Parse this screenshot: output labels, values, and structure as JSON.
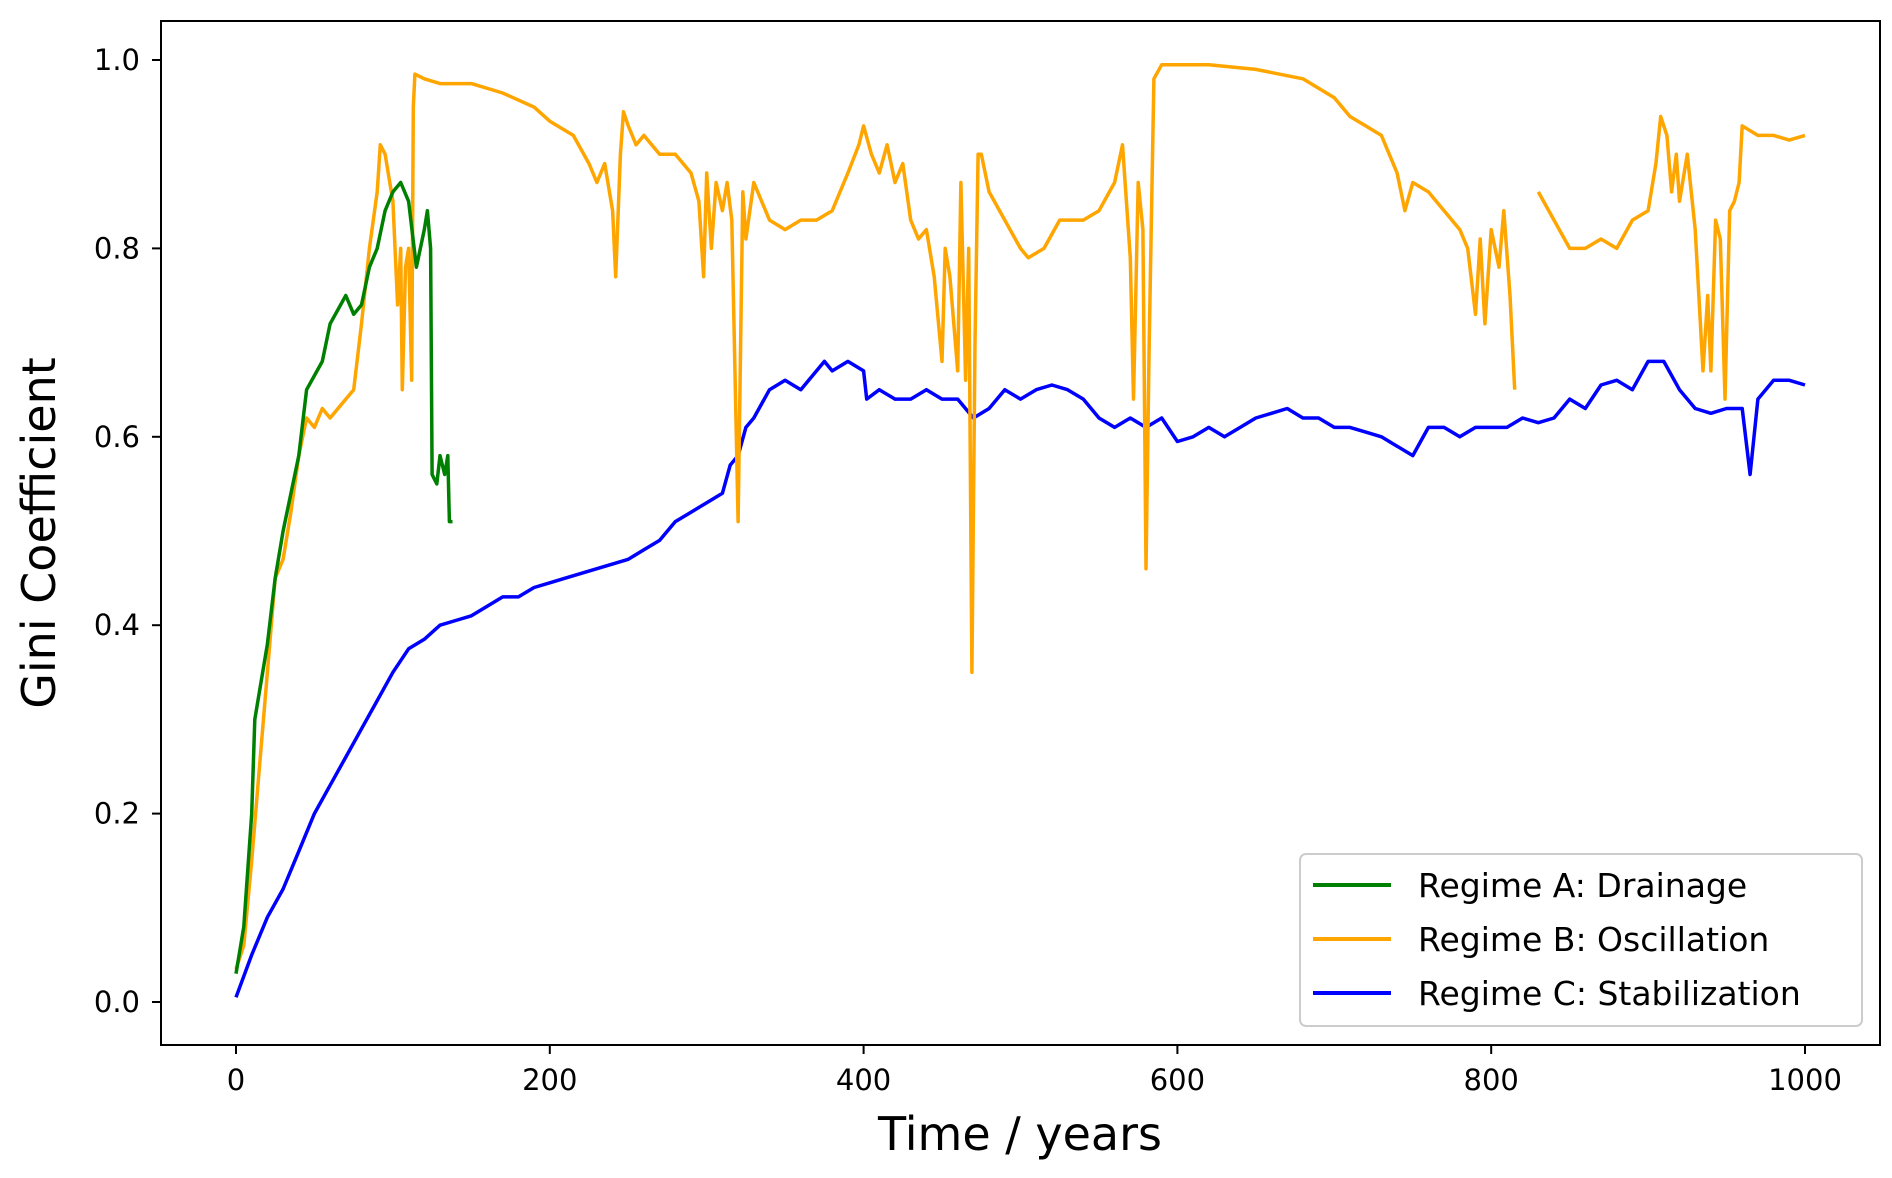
{
  "chart_data": {
    "type": "line",
    "title": "",
    "xlabel": "Time / years",
    "ylabel": "Gini Coefficient",
    "xlim": [
      -50,
      1050
    ],
    "ylim": [
      -0.04,
      1.045
    ],
    "xticks": [
      0,
      200,
      400,
      600,
      800,
      1000
    ],
    "yticks": [
      0.0,
      0.2,
      0.4,
      0.6,
      0.8,
      1.0
    ],
    "xtick_labels": [
      "0",
      "200",
      "400",
      "600",
      "800",
      "1000"
    ],
    "ytick_labels": [
      "0.0",
      "0.2",
      "0.4",
      "0.6",
      "0.8",
      "1.0"
    ],
    "grid": false,
    "legend_position": "bottom-right",
    "series": [
      {
        "name": "Regime A: Drainage",
        "color": "#008000",
        "x": [
          0,
          5,
          10,
          12,
          20,
          25,
          30,
          40,
          45,
          55,
          60,
          70,
          75,
          80,
          85,
          90,
          95,
          100,
          105,
          110,
          115,
          120,
          122,
          124,
          125,
          128,
          130,
          133,
          135,
          136,
          138
        ],
        "y": [
          0.03,
          0.08,
          0.2,
          0.3,
          0.38,
          0.45,
          0.5,
          0.58,
          0.65,
          0.68,
          0.72,
          0.75,
          0.73,
          0.74,
          0.78,
          0.8,
          0.84,
          0.86,
          0.87,
          0.85,
          0.78,
          0.82,
          0.84,
          0.8,
          0.56,
          0.55,
          0.58,
          0.56,
          0.58,
          0.51,
          0.51
        ]
      },
      {
        "name": "Regime B: Oscillation",
        "color": "#FFA500",
        "x": [
          0,
          5,
          10,
          15,
          20,
          25,
          30,
          35,
          40,
          45,
          50,
          55,
          60,
          65,
          70,
          75,
          80,
          85,
          90,
          92,
          95,
          100,
          103,
          105,
          106,
          108,
          110,
          112,
          113,
          114,
          120,
          130,
          150,
          170,
          190,
          200,
          215,
          225,
          230,
          235,
          240,
          242,
          245,
          247,
          250,
          255,
          260,
          270,
          280,
          290,
          295,
          298,
          300,
          303,
          306,
          310,
          313,
          316,
          320,
          323,
          325,
          330,
          340,
          350,
          360,
          370,
          380,
          390,
          397,
          400,
          405,
          410,
          415,
          420,
          425,
          430,
          435,
          440,
          445,
          450,
          452,
          455,
          460,
          462,
          465,
          467,
          469,
          471,
          473,
          475,
          480,
          490,
          500,
          505,
          515,
          525,
          540,
          550,
          560,
          565,
          570,
          572,
          575,
          578,
          580,
          582,
          585,
          590,
          620,
          650,
          680,
          700,
          710,
          720,
          730,
          740,
          745,
          750,
          760,
          770,
          780,
          785,
          790,
          793,
          796,
          800,
          805,
          808,
          812,
          815,
          818,
          830,
          840,
          850,
          860,
          870,
          880,
          890,
          900,
          905,
          908,
          912,
          915,
          918,
          920,
          925,
          930,
          935,
          938,
          940,
          943,
          946,
          949,
          952,
          955,
          958,
          960,
          970,
          980,
          990,
          1000
        ],
        "y": [
          0.035,
          0.06,
          0.15,
          0.25,
          0.35,
          0.45,
          0.47,
          0.52,
          0.58,
          0.62,
          0.61,
          0.63,
          0.62,
          0.63,
          0.64,
          0.65,
          0.72,
          0.8,
          0.86,
          0.91,
          0.9,
          0.85,
          0.74,
          0.8,
          0.65,
          0.78,
          0.8,
          0.66,
          0.95,
          0.985,
          0.98,
          0.975,
          0.975,
          0.965,
          0.95,
          0.935,
          0.92,
          0.89,
          0.87,
          0.89,
          0.84,
          0.77,
          0.9,
          0.945,
          0.93,
          0.91,
          0.92,
          0.9,
          0.9,
          0.88,
          0.85,
          0.77,
          0.88,
          0.8,
          0.87,
          0.84,
          0.87,
          0.83,
          0.51,
          0.86,
          0.81,
          0.87,
          0.83,
          0.82,
          0.83,
          0.83,
          0.84,
          0.88,
          0.91,
          0.93,
          0.9,
          0.88,
          0.91,
          0.87,
          0.89,
          0.83,
          0.81,
          0.82,
          0.77,
          0.68,
          0.8,
          0.77,
          0.67,
          0.87,
          0.66,
          0.8,
          0.35,
          0.7,
          0.9,
          0.9,
          0.86,
          0.83,
          0.8,
          0.79,
          0.8,
          0.83,
          0.83,
          0.84,
          0.87,
          0.91,
          0.79,
          0.64,
          0.87,
          0.82,
          0.46,
          0.7,
          0.98,
          0.995,
          0.995,
          0.99,
          0.98,
          0.96,
          0.94,
          0.93,
          0.92,
          0.88,
          0.84,
          0.87,
          0.86,
          0.84,
          0.82,
          0.8,
          0.73,
          0.81,
          0.72,
          0.82,
          0.78,
          0.84,
          0.75,
          0.65,
          null,
          0.86,
          0.83,
          0.8,
          0.8,
          0.81,
          0.8,
          0.83,
          0.84,
          0.89,
          0.94,
          0.92,
          0.86,
          0.9,
          0.85,
          0.9,
          0.82,
          0.67,
          0.75,
          0.67,
          0.83,
          0.81,
          0.64,
          0.84,
          0.85,
          0.87,
          0.93,
          0.92,
          0.92,
          0.915,
          0.92
        ]
      },
      {
        "name": "Regime C: Stabilization",
        "color": "#0000FF",
        "x": [
          0,
          10,
          20,
          30,
          40,
          50,
          60,
          70,
          80,
          90,
          100,
          110,
          120,
          130,
          140,
          150,
          160,
          170,
          180,
          190,
          200,
          210,
          230,
          250,
          260,
          270,
          280,
          290,
          300,
          310,
          315,
          320,
          325,
          330,
          340,
          350,
          360,
          370,
          375,
          380,
          390,
          400,
          402,
          410,
          420,
          430,
          440,
          450,
          460,
          470,
          480,
          490,
          500,
          510,
          520,
          530,
          540,
          550,
          560,
          570,
          580,
          590,
          600,
          610,
          620,
          630,
          640,
          650,
          660,
          670,
          680,
          690,
          700,
          710,
          720,
          730,
          740,
          750,
          760,
          770,
          780,
          790,
          800,
          810,
          820,
          830,
          840,
          850,
          860,
          870,
          880,
          890,
          900,
          910,
          920,
          930,
          940,
          950,
          960,
          965,
          970,
          980,
          990,
          1000
        ],
        "y": [
          0.005,
          0.05,
          0.09,
          0.12,
          0.16,
          0.2,
          0.23,
          0.26,
          0.29,
          0.32,
          0.35,
          0.375,
          0.385,
          0.4,
          0.405,
          0.41,
          0.42,
          0.43,
          0.43,
          0.44,
          0.445,
          0.45,
          0.46,
          0.47,
          0.48,
          0.49,
          0.51,
          0.52,
          0.53,
          0.54,
          0.57,
          0.58,
          0.61,
          0.62,
          0.65,
          0.66,
          0.65,
          0.67,
          0.68,
          0.67,
          0.68,
          0.67,
          0.64,
          0.65,
          0.64,
          0.64,
          0.65,
          0.64,
          0.64,
          0.62,
          0.63,
          0.65,
          0.64,
          0.65,
          0.655,
          0.65,
          0.64,
          0.62,
          0.61,
          0.62,
          0.61,
          0.62,
          0.595,
          0.6,
          0.61,
          0.6,
          0.61,
          0.62,
          0.625,
          0.63,
          0.62,
          0.62,
          0.61,
          0.61,
          0.605,
          0.6,
          0.59,
          0.58,
          0.61,
          0.61,
          0.6,
          0.61,
          0.61,
          0.61,
          0.62,
          0.615,
          0.62,
          0.64,
          0.63,
          0.655,
          0.66,
          0.65,
          0.68,
          0.68,
          0.65,
          0.63,
          0.625,
          0.63,
          0.63,
          0.56,
          0.64,
          0.66,
          0.66,
          0.655
        ]
      }
    ]
  }
}
